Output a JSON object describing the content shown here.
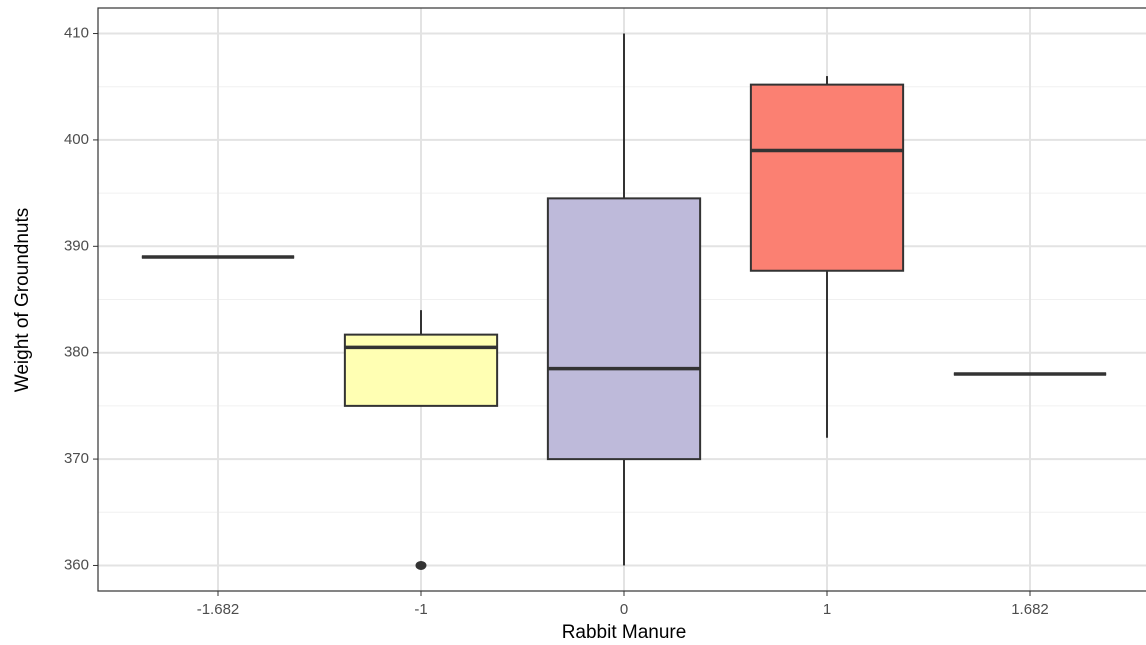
{
  "chart_data": {
    "type": "box",
    "x_label": "Rabbit Manure",
    "y_label": "Weight of Groundnuts",
    "categories": [
      "-1.682",
      "-1",
      "0",
      "1",
      "1.682"
    ],
    "boxes": [
      {
        "min": 389,
        "q1": 389,
        "median": 389,
        "q3": 389,
        "max": 389,
        "outliers": [],
        "color": "#8dd3c7"
      },
      {
        "min": 375,
        "q1": 375,
        "median": 380.5,
        "q3": 381.7,
        "max": 384,
        "outliers": [
          360
        ],
        "color": "#ffffb3"
      },
      {
        "min": 360,
        "q1": 370,
        "median": 378.5,
        "q3": 394.5,
        "max": 410,
        "outliers": [],
        "color": "#bebada"
      },
      {
        "min": 372,
        "q1": 387.7,
        "median": 399,
        "q3": 405.2,
        "max": 406,
        "outliers": [],
        "color": "#fb8072"
      },
      {
        "min": 378,
        "q1": 378,
        "median": 378,
        "q3": 378,
        "max": 378,
        "outliers": [],
        "color": "#80b1d3"
      }
    ],
    "ylim": [
      357.6,
      412.4
    ],
    "yticks": [
      360,
      370,
      380,
      390,
      400,
      410
    ],
    "yminor_ticks": [
      365,
      375,
      385,
      395,
      405
    ],
    "grid": true
  }
}
